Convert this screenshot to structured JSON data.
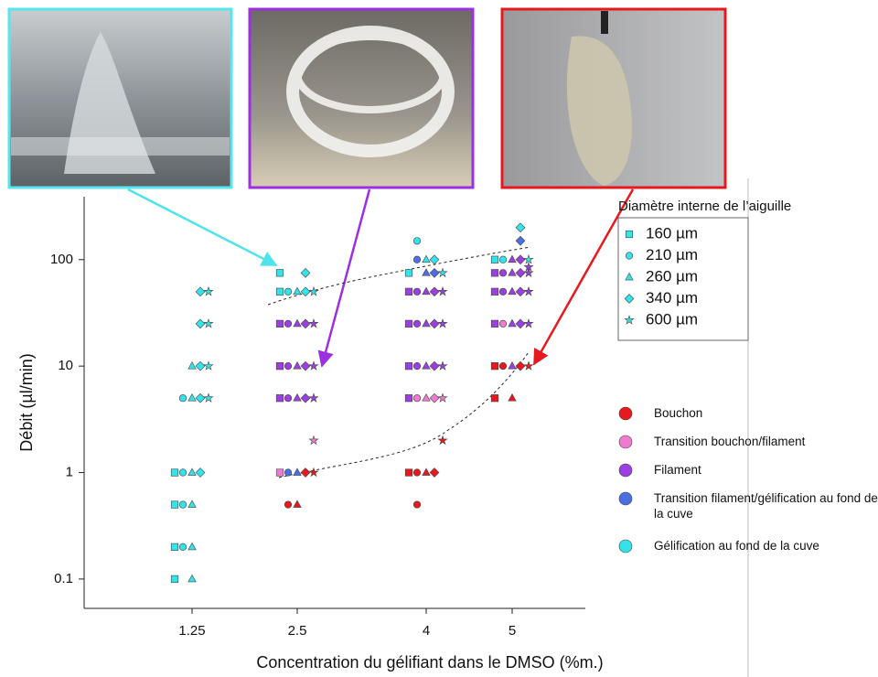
{
  "chart_data": {
    "type": "scatter",
    "y_label": "Débit (µl/min)",
    "x_label": "Concentration du gélifiant dans le DMSO (%m.)",
    "categories": [
      "1.25",
      "2.5",
      "4",
      "5"
    ],
    "log_y": true,
    "ylim": [
      0.053,
      390
    ],
    "yticks": [
      0.1,
      1,
      10,
      100
    ],
    "legend_title": "Diamètre interne de l’aiguille",
    "series": [
      {
        "name": "160 µm",
        "marker": "square",
        "x": [
          "1.25",
          "1.25",
          "1.25",
          "1.25",
          "2.5",
          "2.5",
          "2.5",
          "2.5",
          "2.5",
          "2.5",
          "4",
          "4",
          "4",
          "4",
          "4",
          "4",
          "5",
          "5",
          "5",
          "5",
          "5",
          "5"
        ],
        "values": [
          1,
          0.5,
          0.2,
          0.1,
          75,
          50,
          25,
          10,
          5,
          1,
          75,
          50,
          25,
          10,
          5,
          1,
          100,
          75,
          50,
          25,
          10,
          5
        ],
        "colors": [
          "#33e3ea",
          "#33e3ea",
          "#33e3ea",
          "#33e3ea",
          "#33e3ea",
          "#33e3ea",
          "#9b3fe0",
          "#9b3fe0",
          "#9b3fe0",
          "#f07ad0",
          "#33e3ea",
          "#9b3fe0",
          "#9b3fe0",
          "#9b3fe0",
          "#9b3fe0",
          "#e8191e",
          "#33e3ea",
          "#9b3fe0",
          "#9b3fe0",
          "#9b3fe0",
          "#e8191e",
          "#e8191e"
        ]
      },
      {
        "name": "210 µm",
        "marker": "circle",
        "x": [
          "1.25",
          "1.25",
          "1.25",
          "1.25",
          "2.5",
          "2.5",
          "2.5",
          "2.5",
          "2.5",
          "2.5",
          "4",
          "4",
          "4",
          "4",
          "4",
          "4",
          "4",
          "4",
          "5",
          "5",
          "5",
          "5",
          "5"
        ],
        "values": [
          5,
          1,
          0.5,
          0.2,
          50,
          25,
          10,
          5,
          1,
          0.5,
          150,
          100,
          50,
          25,
          10,
          5,
          1,
          0.5,
          100,
          75,
          50,
          25,
          10
        ],
        "colors": [
          "#33e3ea",
          "#33e3ea",
          "#33e3ea",
          "#33e3ea",
          "#33e3ea",
          "#9b3fe0",
          "#9b3fe0",
          "#9b3fe0",
          "#4a6fe0",
          "#e8191e",
          "#33e3ea",
          "#4a6fe0",
          "#9b3fe0",
          "#9b3fe0",
          "#9b3fe0",
          "#f07ad0",
          "#e8191e",
          "#e8191e",
          "#33e3ea",
          "#9b3fe0",
          "#9b3fe0",
          "#f07ad0",
          "#e8191e"
        ]
      },
      {
        "name": "260 µm",
        "marker": "triangle",
        "x": [
          "1.25",
          "1.25",
          "1.25",
          "1.25",
          "1.25",
          "1.25",
          "2.5",
          "2.5",
          "2.5",
          "2.5",
          "2.5",
          "2.5",
          "4",
          "4",
          "4",
          "4",
          "4",
          "4",
          "4",
          "5",
          "5",
          "5",
          "5",
          "5",
          "5"
        ],
        "values": [
          10,
          5,
          1,
          0.5,
          0.2,
          0.1,
          50,
          25,
          10,
          5,
          1,
          0.5,
          100,
          75,
          50,
          25,
          10,
          5,
          1,
          100,
          75,
          50,
          25,
          10,
          5
        ],
        "colors": [
          "#33e3ea",
          "#33e3ea",
          "#33e3ea",
          "#33e3ea",
          "#33e3ea",
          "#33e3ea",
          "#33e3ea",
          "#9b3fe0",
          "#9b3fe0",
          "#9b3fe0",
          "#4a6fe0",
          "#e8191e",
          "#33e3ea",
          "#4a6fe0",
          "#9b3fe0",
          "#9b3fe0",
          "#9b3fe0",
          "#f07ad0",
          "#e8191e",
          "#9b3fe0",
          "#9b3fe0",
          "#9b3fe0",
          "#9b3fe0",
          "#9b3fe0",
          "#e8191e"
        ]
      },
      {
        "name": "340 µm",
        "marker": "diamond",
        "x": [
          "1.25",
          "1.25",
          "1.25",
          "1.25",
          "1.25",
          "2.5",
          "2.5",
          "2.5",
          "2.5",
          "2.5",
          "2.5",
          "4",
          "4",
          "4",
          "4",
          "4",
          "4",
          "4",
          "5",
          "5",
          "5",
          "5",
          "5",
          "5",
          "5"
        ],
        "values": [
          50,
          25,
          10,
          5,
          1,
          75,
          50,
          25,
          10,
          5,
          1,
          100,
          75,
          50,
          25,
          10,
          5,
          1,
          200,
          150,
          100,
          75,
          50,
          25,
          10
        ],
        "colors": [
          "#33e3ea",
          "#33e3ea",
          "#33e3ea",
          "#33e3ea",
          "#33e3ea",
          "#33e3ea",
          "#33e3ea",
          "#9b3fe0",
          "#9b3fe0",
          "#9b3fe0",
          "#e8191e",
          "#33e3ea",
          "#4a6fe0",
          "#9b3fe0",
          "#9b3fe0",
          "#9b3fe0",
          "#f07ad0",
          "#e8191e",
          "#33e3ea",
          "#4a6fe0",
          "#9b3fe0",
          "#9b3fe0",
          "#9b3fe0",
          "#9b3fe0",
          "#e8191e"
        ]
      },
      {
        "name": "600 µm",
        "marker": "star",
        "x": [
          "1.25",
          "1.25",
          "1.25",
          "1.25",
          "2.5",
          "2.5",
          "2.5",
          "2.5",
          "2.5",
          "2.5",
          "4",
          "4",
          "4",
          "4",
          "4",
          "4",
          "5",
          "5",
          "5",
          "5",
          "5",
          "5"
        ],
        "values": [
          50,
          25,
          10,
          5,
          50,
          25,
          10,
          5,
          2,
          1,
          75,
          50,
          25,
          10,
          5,
          2,
          100,
          85,
          75,
          50,
          25,
          10
        ],
        "colors": [
          "#33e3ea",
          "#33e3ea",
          "#33e3ea",
          "#33e3ea",
          "#33e3ea",
          "#9b3fe0",
          "#9b3fe0",
          "#9b3fe0",
          "#f07ad0",
          "#e8191e",
          "#33e3ea",
          "#9b3fe0",
          "#9b3fe0",
          "#9b3fe0",
          "#f07ad0",
          "#e8191e",
          "#33e3ea",
          "#9b3fe0",
          "#9b3fe0",
          "#9b3fe0",
          "#9b3fe0",
          "#e8191e"
        ]
      }
    ],
    "states": [
      {
        "name": "Bouchon",
        "color": "#e8191e"
      },
      {
        "name": "Transition bouchon/filament",
        "color": "#f07ad0"
      },
      {
        "name": "Filament",
        "color": "#9b3fe0"
      },
      {
        "name": "Transition filament/gélification au fond de la cuve",
        "color": "#4a6fe0"
      },
      {
        "name": "Gélification au fond de la cuve",
        "color": "#33e3ea"
      }
    ]
  }
}
